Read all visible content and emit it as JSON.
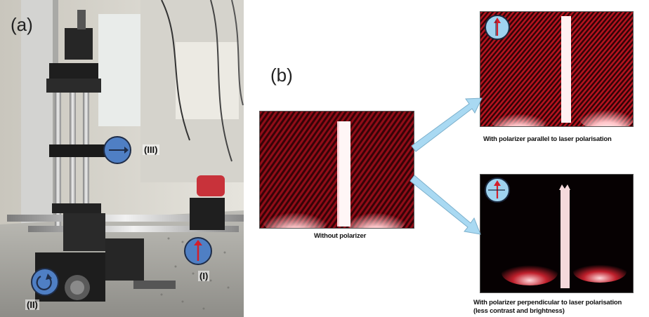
{
  "panel_a": {
    "label": "(a)",
    "markers": [
      {
        "id": "III",
        "label": "(III)",
        "icon": "arrow-right-icon"
      },
      {
        "id": "I",
        "label": "(I)",
        "icon": "arrow-up-icon"
      },
      {
        "id": "II",
        "label": "(II)",
        "icon": "rotate-arrow-icon"
      }
    ]
  },
  "panel_b": {
    "label": "(b)",
    "images": [
      {
        "id": "without",
        "caption": "Without polarizer"
      },
      {
        "id": "parallel",
        "caption": "With polarizer parallel to laser polarisation"
      },
      {
        "id": "perpendicular",
        "caption_line1": "With polarizer perpendicular to laser polarisation",
        "caption_line2": "(less contrast and brightness)"
      }
    ]
  },
  "colors": {
    "marker_blue": "#4f7fc4",
    "arrow_red": "#d21f2b",
    "callout_arrow": "#a9d9f2",
    "speckle_red": "#c0202c"
  }
}
